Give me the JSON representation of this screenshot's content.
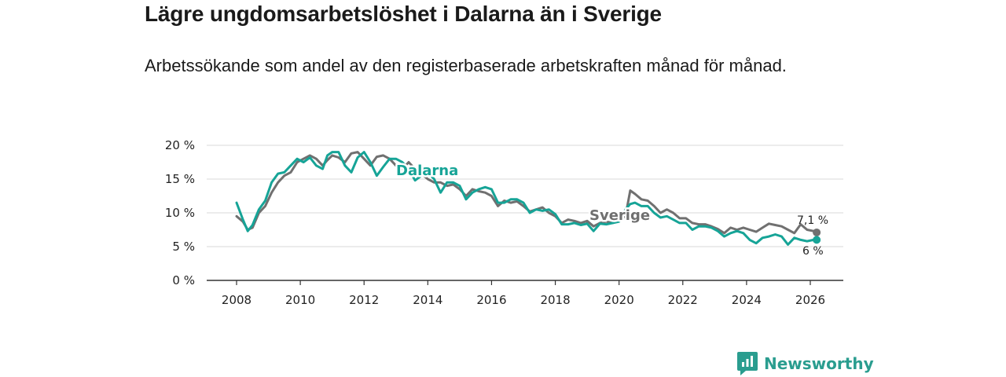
{
  "chart_data": {
    "type": "line",
    "title": "Lägre ungdomsarbetslöshet i Dalarna än i Sverige",
    "subtitle": "Arbetssökande som andel av den registerbaserade arbetskraften månad för månad.",
    "y_ticks": [
      "0 %",
      "5 %",
      "10 %",
      "15 %",
      "20 %"
    ],
    "x_ticks": [
      "2008",
      "2010",
      "2012",
      "2014",
      "2016",
      "2018",
      "2020",
      "2022",
      "2024",
      "2026"
    ],
    "xlim": [
      2007.5,
      2027.0
    ],
    "ylim": [
      0,
      20
    ],
    "grid": true,
    "series": [
      {
        "name": "Sverige",
        "color": "#707070",
        "end_label": "7,1 %",
        "x": [
          2008.0,
          2008.2,
          2008.35,
          2008.5,
          2008.7,
          2008.9,
          2009.1,
          2009.3,
          2009.5,
          2009.7,
          2009.9,
          2010.1,
          2010.3,
          2010.5,
          2010.7,
          2010.85,
          2011.0,
          2011.2,
          2011.4,
          2011.6,
          2011.8,
          2012.0,
          2012.2,
          2012.4,
          2012.6,
          2012.8,
          2013.0,
          2013.2,
          2013.4,
          2013.6,
          2013.8,
          2014.0,
          2014.2,
          2014.4,
          2014.6,
          2014.8,
          2015.0,
          2015.2,
          2015.4,
          2015.6,
          2015.8,
          2016.0,
          2016.2,
          2016.4,
          2016.6,
          2016.8,
          2017.0,
          2017.2,
          2017.4,
          2017.6,
          2017.8,
          2018.0,
          2018.2,
          2018.4,
          2018.6,
          2018.8,
          2019.0,
          2019.2,
          2019.4,
          2019.6,
          2019.8,
          2020.0,
          2020.2,
          2020.35,
          2020.5,
          2020.7,
          2020.9,
          2021.1,
          2021.3,
          2021.5,
          2021.7,
          2021.9,
          2022.1,
          2022.3,
          2022.5,
          2022.7,
          2022.9,
          2023.1,
          2023.3,
          2023.5,
          2023.7,
          2023.9,
          2024.1,
          2024.3,
          2024.5,
          2024.7,
          2024.9,
          2025.1,
          2025.3,
          2025.5,
          2025.7,
          2025.9,
          2026.1,
          2026.2
        ],
        "y": [
          9.5,
          8.7,
          7.5,
          7.8,
          10.0,
          11.0,
          13.0,
          14.5,
          15.5,
          16.0,
          17.5,
          18.0,
          18.5,
          18.0,
          17.0,
          17.8,
          18.5,
          18.2,
          17.5,
          18.8,
          19.0,
          18.0,
          17.0,
          18.3,
          18.5,
          18.0,
          17.0,
          16.5,
          17.5,
          16.5,
          15.8,
          15.0,
          14.5,
          14.5,
          14.0,
          14.2,
          13.5,
          12.5,
          13.5,
          13.2,
          13.0,
          12.5,
          11.0,
          11.8,
          11.5,
          11.7,
          11.0,
          10.2,
          10.5,
          10.8,
          10.0,
          9.5,
          8.5,
          9.0,
          8.8,
          8.5,
          8.8,
          8.0,
          8.5,
          8.7,
          8.5,
          9.0,
          9.5,
          13.3,
          12.8,
          12.0,
          11.8,
          11.0,
          10.0,
          10.5,
          10.0,
          9.2,
          9.2,
          8.5,
          8.3,
          8.3,
          8.0,
          7.6,
          7.0,
          7.8,
          7.5,
          7.8,
          7.5,
          7.2,
          7.8,
          8.4,
          8.2,
          8.0,
          7.5,
          7.0,
          8.3,
          7.5,
          7.3,
          7.1
        ]
      },
      {
        "name": "Dalarna",
        "color": "#16a497",
        "end_label": "6 %",
        "x": [
          2008.0,
          2008.2,
          2008.35,
          2008.5,
          2008.7,
          2008.9,
          2009.1,
          2009.3,
          2009.5,
          2009.7,
          2009.9,
          2010.1,
          2010.3,
          2010.5,
          2010.7,
          2010.85,
          2011.0,
          2011.2,
          2011.4,
          2011.6,
          2011.8,
          2012.0,
          2012.2,
          2012.4,
          2012.6,
          2012.8,
          2013.0,
          2013.2,
          2013.4,
          2013.6,
          2013.8,
          2014.0,
          2014.2,
          2014.4,
          2014.6,
          2014.8,
          2015.0,
          2015.2,
          2015.4,
          2015.6,
          2015.8,
          2016.0,
          2016.2,
          2016.4,
          2016.6,
          2016.8,
          2017.0,
          2017.2,
          2017.4,
          2017.6,
          2017.8,
          2018.0,
          2018.2,
          2018.4,
          2018.6,
          2018.8,
          2019.0,
          2019.2,
          2019.4,
          2019.6,
          2019.8,
          2020.0,
          2020.2,
          2020.35,
          2020.5,
          2020.7,
          2020.9,
          2021.1,
          2021.3,
          2021.5,
          2021.7,
          2021.9,
          2022.1,
          2022.3,
          2022.5,
          2022.7,
          2022.9,
          2023.1,
          2023.3,
          2023.5,
          2023.7,
          2023.9,
          2024.1,
          2024.3,
          2024.5,
          2024.7,
          2024.9,
          2025.1,
          2025.3,
          2025.5,
          2025.7,
          2025.9,
          2026.1,
          2026.2
        ],
        "y": [
          11.5,
          9.0,
          7.3,
          8.2,
          10.5,
          11.8,
          14.5,
          15.8,
          16.0,
          17.0,
          18.0,
          17.5,
          18.2,
          17.0,
          16.5,
          18.5,
          19.0,
          19.0,
          17.0,
          16.0,
          18.2,
          19.0,
          17.5,
          15.5,
          16.8,
          18.0,
          18.0,
          17.5,
          16.5,
          14.8,
          15.5,
          16.0,
          15.0,
          13.0,
          14.5,
          14.5,
          14.0,
          12.0,
          13.0,
          13.5,
          13.8,
          13.5,
          11.5,
          11.5,
          12.0,
          12.0,
          11.5,
          10.0,
          10.5,
          10.3,
          10.5,
          9.8,
          8.3,
          8.3,
          8.5,
          8.2,
          8.4,
          7.3,
          8.4,
          8.3,
          8.5,
          8.7,
          10.5,
          11.3,
          11.5,
          11.0,
          11.0,
          10.0,
          9.3,
          9.5,
          9.0,
          8.5,
          8.5,
          7.5,
          8.0,
          8.0,
          7.8,
          7.3,
          6.5,
          7.0,
          7.3,
          7.0,
          6.0,
          5.5,
          6.3,
          6.5,
          6.8,
          6.5,
          5.3,
          6.3,
          6.0,
          5.8,
          6.0,
          6.0
        ]
      }
    ],
    "annotations": [
      "Dalarna",
      "Sverige"
    ]
  },
  "brand": {
    "name": "Newsworthy"
  },
  "colors": {
    "dalarna": "#16a497",
    "sverige": "#707070",
    "grid": "#d9d9d9",
    "axis": "#333333"
  }
}
